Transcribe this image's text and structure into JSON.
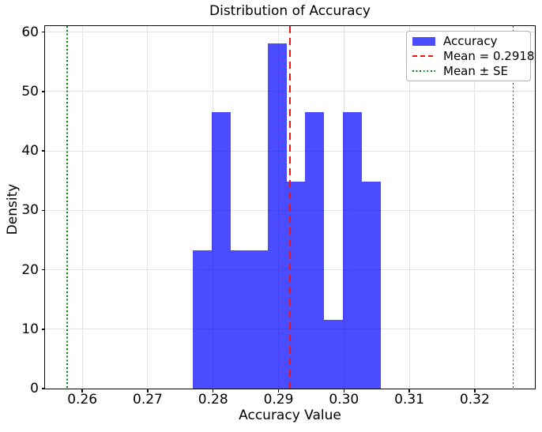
{
  "chart_data": {
    "type": "bar",
    "subtype": "histogram_density",
    "title": "Distribution of Accuracy",
    "xlabel": "Accuracy Value",
    "ylabel": "Density",
    "bin_edges": [
      0.2769,
      0.2798,
      0.2827,
      0.2855,
      0.2884,
      0.2913,
      0.2941,
      0.297,
      0.2999,
      0.3027,
      0.3056
    ],
    "densities": [
      23.23,
      46.46,
      23.23,
      23.23,
      58.07,
      34.84,
      46.46,
      11.61,
      46.46,
      34.84
    ],
    "counts": [
      2,
      4,
      2,
      2,
      5,
      3,
      4,
      1,
      4,
      3
    ],
    "mean": 0.2918,
    "se": 0.0341,
    "mean_minus_se": 0.2577,
    "mean_plus_se": 0.3259,
    "xlim": [
      0.2543,
      0.3292
    ],
    "ylim": [
      0,
      61.0
    ],
    "x_tick_values": [
      0.26,
      0.27,
      0.28,
      0.29,
      0.3,
      0.31,
      0.32
    ],
    "x_tick_labels": [
      "0.26",
      "0.27",
      "0.28",
      "0.29",
      "0.30",
      "0.31",
      "0.32"
    ],
    "y_tick_values": [
      0,
      10,
      20,
      30,
      40,
      50,
      60
    ],
    "y_tick_labels": [
      "0",
      "10",
      "20",
      "30",
      "40",
      "50",
      "60"
    ],
    "grid": true,
    "legend": {
      "position": "upper right",
      "items": [
        {
          "label": "Accuracy",
          "handle": "patch"
        },
        {
          "label": "Mean = 0.2918",
          "handle": "dashed-line"
        },
        {
          "label": "Mean ± SE",
          "handle": "dotted-line"
        }
      ]
    },
    "colors": {
      "bar_fill": "rgba(0,0,255,0.7)",
      "mean_line": "#f01515",
      "se_line": "#008000",
      "grid": "#e4e4e4",
      "spine": "#0a0a0a",
      "text": "#000000"
    }
  }
}
